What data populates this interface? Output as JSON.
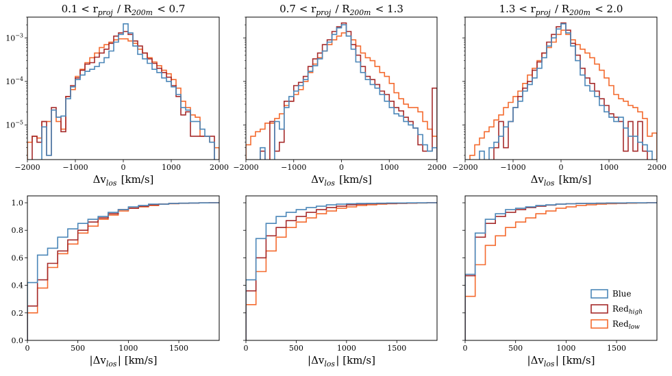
{
  "figure": {
    "colors": {
      "Blue": "#4a86b8",
      "Red_high": "#a52a2a",
      "Red_low": "#f46a2e"
    },
    "legend": {
      "placement": "lower-right",
      "entries": [
        {
          "key": "Blue",
          "label": "Blue",
          "sub": ""
        },
        {
          "key": "Red_high",
          "label": "Red",
          "sub": "high"
        },
        {
          "key": "Red_low",
          "label": "Red",
          "sub": "low"
        }
      ]
    }
  },
  "chart_data": [
    {
      "id": "top-left",
      "type": "step-histogram",
      "title": "0.1 < r_proj / R_200m < 0.7",
      "xlabel": "Δv_los [km/s]",
      "ylabel": "",
      "xlim": [
        -2000,
        2000
      ],
      "ylim": [
        1.6e-06,
        0.003
      ],
      "yscale": "log",
      "xticks": [
        -2000,
        -1000,
        0,
        1000,
        2000
      ],
      "yticks": [
        {
          "v": 1e-05,
          "label": "10^-5"
        },
        {
          "v": 0.0001,
          "label": "10^-4"
        },
        {
          "v": 0.001,
          "label": "10^-3"
        }
      ],
      "bin_edges": [
        -2000,
        -1900,
        -1800,
        -1700,
        -1600,
        -1500,
        -1400,
        -1300,
        -1200,
        -1100,
        -1000,
        -900,
        -800,
        -700,
        -600,
        -500,
        -400,
        -300,
        -200,
        -100,
        0,
        100,
        200,
        300,
        400,
        500,
        600,
        700,
        800,
        900,
        1000,
        1100,
        1200,
        1300,
        1400,
        1500,
        1600,
        1700,
        1800,
        1900,
        2000
      ],
      "series": [
        {
          "name": "Blue",
          "values": [
            null,
            null,
            null,
            9e-06,
            2e-06,
            2.2e-05,
            1.5e-05,
            1.6e-05,
            4e-05,
            7.5e-05,
            0.00011,
            0.00014,
            0.00017,
            0.00019,
            0.00022,
            0.00027,
            0.00035,
            0.0005,
            0.0008,
            0.0012,
            0.0021,
            0.0013,
            0.00065,
            0.00042,
            0.00033,
            0.00026,
            0.00019,
            0.00016,
            0.00012,
            0.0001,
            7.5e-05,
            5e-05,
            2.5e-05,
            2.2e-05,
            1.2e-05,
            1.2e-05,
            8e-06,
            5.5e-06,
            4e-06,
            null
          ]
        },
        {
          "name": "Red_high",
          "values": [
            null,
            5.5e-06,
            4e-06,
            1.2e-05,
            2e-06,
            2.5e-05,
            1.5e-05,
            7e-06,
            4.5e-05,
            8e-05,
            0.00012,
            0.00018,
            0.00025,
            0.00027,
            0.00036,
            0.00045,
            0.00055,
            0.00075,
            0.0011,
            0.0013,
            0.0014,
            0.0012,
            0.00085,
            0.00065,
            0.00045,
            0.00033,
            0.00026,
            0.0002,
            0.00016,
            0.000125,
            8e-05,
            4.5e-05,
            1.7e-05,
            2e-05,
            5.5e-06,
            5.5e-06,
            5.5e-06,
            5.5e-06,
            5.5e-06,
            null
          ]
        },
        {
          "name": "Red_low",
          "values": [
            4e-06,
            5.5e-06,
            5e-06,
            1.2e-05,
            1.2e-05,
            2.2e-05,
            1.2e-05,
            8e-06,
            4.5e-05,
            6.5e-05,
            0.00013,
            0.00019,
            0.00027,
            0.00035,
            0.00045,
            0.0006,
            0.0007,
            0.0008,
            0.0009,
            0.00095,
            0.00095,
            0.00085,
            0.00075,
            0.00055,
            0.00045,
            0.00035,
            0.00028,
            0.00023,
            0.00018,
            0.00015,
            0.00011,
            7e-05,
            3.5e-05,
            2.5e-05,
            1.7e-05,
            1.5e-05,
            5.5e-06,
            5.5e-06,
            4e-06,
            3e-06
          ]
        }
      ]
    },
    {
      "id": "top-middle",
      "type": "step-histogram",
      "title": "0.7 < r_proj / R_200m < 1.3",
      "xlabel": "Δv_los [km/s]",
      "ylabel": "",
      "xlim": [
        -2000,
        2000
      ],
      "ylim": [
        1.6e-06,
        0.003
      ],
      "yscale": "log",
      "xticks": [
        -2000,
        -1000,
        0,
        1000,
        2000
      ],
      "yticks": [
        {
          "v": 1e-05,
          "label": ""
        },
        {
          "v": 0.0001,
          "label": ""
        },
        {
          "v": 0.001,
          "label": ""
        }
      ],
      "bin_edges": [
        -2000,
        -1900,
        -1800,
        -1700,
        -1600,
        -1500,
        -1400,
        -1300,
        -1200,
        -1100,
        -1000,
        -900,
        -800,
        -700,
        -600,
        -500,
        -400,
        -300,
        -200,
        -100,
        0,
        100,
        200,
        300,
        400,
        500,
        600,
        700,
        800,
        900,
        1000,
        1100,
        1200,
        1300,
        1400,
        1500,
        1600,
        1700,
        1800,
        1900,
        2000
      ],
      "series": [
        {
          "name": "Blue",
          "values": [
            null,
            null,
            null,
            3e-06,
            null,
            null,
            1.2e-05,
            8e-06,
            2.5e-05,
            4.5e-05,
            6e-05,
            8e-05,
            0.00011,
            0.00017,
            0.00023,
            0.00033,
            0.0005,
            0.0008,
            0.0012,
            0.0017,
            0.002,
            0.0011,
            0.00055,
            0.00028,
            0.00016,
            0.00011,
            8.5e-05,
            7e-05,
            5e-05,
            3.5e-05,
            2.5e-05,
            1.8e-05,
            1.6e-05,
            1.2e-05,
            1e-05,
            8.5e-06,
            6e-06,
            3.5e-06,
            2.5e-06,
            3e-06
          ]
        },
        {
          "name": "Red_high",
          "values": [
            null,
            null,
            null,
            2.5e-06,
            null,
            1.2e-05,
            2.5e-06,
            4e-06,
            3.5e-05,
            3.5e-05,
            8e-05,
            9.5e-05,
            0.00013,
            0.00022,
            0.00033,
            0.00045,
            0.0007,
            0.0009,
            0.0014,
            0.0018,
            0.0022,
            0.0014,
            0.0007,
            0.0004,
            0.00022,
            0.00013,
            0.00011,
            8.5e-05,
            6e-05,
            5e-05,
            3.5e-05,
            2.5e-05,
            2.1e-05,
            1.5e-05,
            1.2e-05,
            8.5e-06,
            3.5e-06,
            2.5e-06,
            2.5e-06,
            7e-05
          ]
        },
        {
          "name": "Red_low",
          "values": [
            3.5e-06,
            5.5e-06,
            7e-06,
            8e-06,
            1.1e-05,
            1.1e-05,
            1.4e-05,
            1.8e-05,
            2.8e-05,
            3.5e-05,
            5e-05,
            6.5e-05,
            0.0001,
            0.00016,
            0.00025,
            0.00035,
            0.0005,
            0.0007,
            0.0009,
            0.0011,
            0.0013,
            0.0011,
            0.0009,
            0.00065,
            0.00045,
            0.00035,
            0.0003,
            0.00022,
            0.00016,
            0.00013,
            9e-05,
            5.5e-05,
            4e-05,
            3e-05,
            2.5e-05,
            2.5e-05,
            2e-05,
            1.2e-05,
            8e-06,
            5.5e-06
          ]
        }
      ]
    },
    {
      "id": "top-right",
      "type": "step-histogram",
      "title": "1.3 < r_proj / R_200m < 2.0",
      "xlabel": "Δv_los [km/s]",
      "ylabel": "",
      "xlim": [
        -2000,
        2000
      ],
      "ylim": [
        1.6e-06,
        0.003
      ],
      "yscale": "log",
      "xticks": [
        -2000,
        -1000,
        0,
        1000,
        2000
      ],
      "yticks": [
        {
          "v": 1e-05,
          "label": ""
        },
        {
          "v": 0.0001,
          "label": ""
        },
        {
          "v": 0.001,
          "label": ""
        }
      ],
      "bin_edges": [
        -2000,
        -1900,
        -1800,
        -1700,
        -1600,
        -1500,
        -1400,
        -1300,
        -1200,
        -1100,
        -1000,
        -900,
        -800,
        -700,
        -600,
        -500,
        -400,
        -300,
        -200,
        -100,
        0,
        100,
        200,
        300,
        400,
        500,
        600,
        700,
        800,
        900,
        1000,
        1100,
        1200,
        1300,
        1400,
        1500,
        1600,
        1700,
        1800,
        1900,
        2000
      ],
      "series": [
        {
          "name": "Blue",
          "values": [
            null,
            null,
            null,
            2.5e-06,
            null,
            3e-06,
            4e-06,
            5.5e-06,
            9e-06,
            1.2e-05,
            2.5e-05,
            3.5e-05,
            6e-05,
            8.5e-05,
            0.00012,
            0.0002,
            0.00035,
            0.00065,
            0.001,
            0.0016,
            0.0021,
            0.0013,
            0.00065,
            0.0003,
            0.00014,
            8e-05,
            6e-05,
            4.5e-05,
            2.8e-05,
            2e-05,
            1.5e-05,
            1.2e-05,
            1.5e-05,
            8.5e-06,
            5.5e-06,
            5.5e-06,
            4e-06,
            3.5e-06,
            2.5e-06,
            null
          ]
        },
        {
          "name": "Red_high",
          "values": [
            null,
            null,
            null,
            null,
            null,
            null,
            3e-06,
            1.2e-05,
            3e-06,
            1.2e-05,
            2.5e-05,
            4.5e-05,
            7e-05,
            0.0001,
            0.00018,
            0.00028,
            0.00045,
            0.0008,
            0.0012,
            0.0018,
            0.0022,
            0.0015,
            0.00075,
            0.0004,
            0.0002,
            0.00012,
            9e-05,
            6e-05,
            4e-05,
            2.8e-05,
            1.8e-05,
            1.5e-05,
            1.2e-05,
            2.5e-06,
            1.2e-05,
            2.5e-06,
            1.2e-05,
            2.5e-06,
            null,
            null
          ]
        },
        {
          "name": "Red_low",
          "values": [
            null,
            2e-06,
            3.5e-06,
            5e-06,
            7e-06,
            9e-06,
            1.3e-05,
            1.7e-05,
            2.5e-05,
            3.3e-05,
            4.5e-05,
            6e-05,
            9e-05,
            0.00014,
            0.0002,
            0.0003,
            0.00045,
            0.0006,
            0.0008,
            0.0012,
            0.0015,
            0.0012,
            0.0009,
            0.0007,
            0.00055,
            0.00045,
            0.00035,
            0.00025,
            0.00018,
            0.00012,
            8e-05,
            5e-05,
            4e-05,
            3.5e-05,
            2.8e-05,
            2.5e-05,
            2e-05,
            1.4e-05,
            5.5e-06,
            6.5e-06
          ]
        }
      ]
    },
    {
      "id": "bottom-left",
      "type": "step-cdf",
      "title": "",
      "xlabel": "|Δv_los| [km/s]",
      "ylabel": "",
      "xlim": [
        0,
        1900
      ],
      "ylim": [
        0,
        1.05
      ],
      "yscale": "linear",
      "xticks": [
        0,
        500,
        1000,
        1500
      ],
      "yticks": [
        {
          "v": 0,
          "label": "0.0"
        },
        {
          "v": 0.2,
          "label": "0.2"
        },
        {
          "v": 0.4,
          "label": "0.4"
        },
        {
          "v": 0.6,
          "label": "0.6"
        },
        {
          "v": 0.8,
          "label": "0.8"
        },
        {
          "v": 1.0,
          "label": "1.0"
        }
      ],
      "bin_edges": [
        0,
        100,
        200,
        300,
        400,
        500,
        600,
        700,
        800,
        900,
        1000,
        1100,
        1200,
        1300,
        1400,
        1500,
        1600,
        1700,
        1800,
        1900
      ],
      "series": [
        {
          "name": "Blue",
          "values": [
            0.42,
            0.62,
            0.67,
            0.75,
            0.81,
            0.85,
            0.88,
            0.9,
            0.93,
            0.95,
            0.97,
            0.98,
            0.99,
            0.99,
            0.995,
            0.997,
            0.998,
            0.999,
            1.0
          ]
        },
        {
          "name": "Red_high",
          "values": [
            0.25,
            0.44,
            0.56,
            0.65,
            0.73,
            0.8,
            0.86,
            0.89,
            0.92,
            0.95,
            0.96,
            0.975,
            0.985,
            0.99,
            0.995,
            0.997,
            0.998,
            0.999,
            1.0
          ]
        },
        {
          "name": "Red_low",
          "values": [
            0.2,
            0.38,
            0.53,
            0.63,
            0.7,
            0.78,
            0.83,
            0.88,
            0.91,
            0.94,
            0.96,
            0.97,
            0.98,
            0.99,
            0.993,
            0.996,
            0.998,
            0.999,
            1.0
          ]
        }
      ]
    },
    {
      "id": "bottom-middle",
      "type": "step-cdf",
      "title": "",
      "xlabel": "|Δv_los| [km/s]",
      "ylabel": "",
      "xlim": [
        0,
        1900
      ],
      "ylim": [
        0,
        1.05
      ],
      "yscale": "linear",
      "xticks": [
        0,
        500,
        1000,
        1500
      ],
      "yticks": [
        {
          "v": 0,
          "label": ""
        },
        {
          "v": 0.2,
          "label": ""
        },
        {
          "v": 0.4,
          "label": ""
        },
        {
          "v": 0.6,
          "label": ""
        },
        {
          "v": 0.8,
          "label": ""
        },
        {
          "v": 1.0,
          "label": ""
        }
      ],
      "bin_edges": [
        0,
        100,
        200,
        300,
        400,
        500,
        600,
        700,
        800,
        900,
        1000,
        1100,
        1200,
        1300,
        1400,
        1500,
        1600,
        1700,
        1800,
        1900
      ],
      "series": [
        {
          "name": "Blue",
          "values": [
            0.44,
            0.74,
            0.85,
            0.9,
            0.93,
            0.95,
            0.965,
            0.975,
            0.985,
            0.99,
            0.993,
            0.995,
            0.996,
            0.997,
            0.998,
            0.998,
            0.999,
            0.999,
            1.0
          ]
        },
        {
          "name": "Red_high",
          "values": [
            0.36,
            0.6,
            0.76,
            0.82,
            0.87,
            0.9,
            0.93,
            0.95,
            0.965,
            0.975,
            0.985,
            0.99,
            0.993,
            0.995,
            0.996,
            0.997,
            0.998,
            0.999,
            1.0
          ]
        },
        {
          "name": "Red_low",
          "values": [
            0.26,
            0.5,
            0.65,
            0.75,
            0.82,
            0.86,
            0.89,
            0.92,
            0.94,
            0.96,
            0.97,
            0.98,
            0.985,
            0.99,
            0.993,
            0.995,
            0.997,
            0.998,
            1.0
          ]
        }
      ]
    },
    {
      "id": "bottom-right",
      "type": "step-cdf",
      "title": "",
      "xlabel": "|Δv_los| [km/s]",
      "ylabel": "",
      "xlim": [
        0,
        1900
      ],
      "ylim": [
        0,
        1.05
      ],
      "yscale": "linear",
      "xticks": [
        0,
        500,
        1000,
        1500
      ],
      "yticks": [
        {
          "v": 0,
          "label": ""
        },
        {
          "v": 0.2,
          "label": ""
        },
        {
          "v": 0.4,
          "label": ""
        },
        {
          "v": 0.6,
          "label": ""
        },
        {
          "v": 0.8,
          "label": ""
        },
        {
          "v": 1.0,
          "label": ""
        }
      ],
      "bin_edges": [
        0,
        100,
        200,
        300,
        400,
        500,
        600,
        700,
        800,
        900,
        1000,
        1100,
        1200,
        1300,
        1400,
        1500,
        1600,
        1700,
        1800,
        1900
      ],
      "series": [
        {
          "name": "Blue",
          "values": [
            0.48,
            0.78,
            0.88,
            0.92,
            0.95,
            0.96,
            0.97,
            0.98,
            0.985,
            0.99,
            0.993,
            0.995,
            0.996,
            0.997,
            0.998,
            0.998,
            0.999,
            0.999,
            1.0
          ]
        },
        {
          "name": "Red_high",
          "values": [
            0.47,
            0.75,
            0.85,
            0.9,
            0.93,
            0.95,
            0.965,
            0.975,
            0.983,
            0.99,
            0.993,
            0.995,
            0.996,
            0.997,
            0.998,
            0.998,
            0.999,
            0.999,
            1.0
          ]
        },
        {
          "name": "Red_low",
          "values": [
            0.32,
            0.55,
            0.69,
            0.76,
            0.82,
            0.86,
            0.89,
            0.92,
            0.94,
            0.96,
            0.97,
            0.98,
            0.985,
            0.99,
            0.993,
            0.995,
            0.997,
            0.998,
            1.0
          ]
        }
      ]
    }
  ]
}
